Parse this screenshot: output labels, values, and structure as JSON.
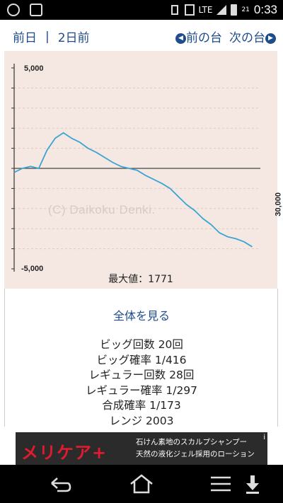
{
  "statusbar": {
    "network": "LTE",
    "battery": "21",
    "time": "0:33"
  },
  "nav": {
    "prev_day": "前日",
    "separator": "|",
    "two_days_ago": "2日前",
    "prev_machine": "前の台",
    "next_machine": "次の台"
  },
  "graph": {
    "watermark": "(C) Daikoku Denki.",
    "max_label": "最大値：1771",
    "chart_data": {
      "type": "line",
      "ylim": [
        -5000,
        5000
      ],
      "yticks": [
        "5,000",
        "-5,000"
      ],
      "xlabel_right": "30,000",
      "x_max": 30000,
      "grid": "dashed-horizontal",
      "series": [
        {
          "color": "#3aa5d3",
          "x": [
            0,
            1000,
            2000,
            3000,
            4000,
            5000,
            6000,
            7000,
            8000,
            9000,
            10000,
            11000,
            12000,
            13000,
            14000,
            15000,
            16000,
            17000,
            18000,
            19000,
            20000,
            21000,
            22000,
            23000,
            24000,
            25000,
            26000,
            27000,
            28000,
            29000
          ],
          "y": [
            -200,
            0,
            100,
            0,
            900,
            1500,
            1771,
            1500,
            1300,
            1000,
            800,
            550,
            300,
            100,
            0,
            -100,
            -350,
            -550,
            -750,
            -1000,
            -1400,
            -1800,
            -2100,
            -2500,
            -2800,
            -3200,
            -3400,
            -3500,
            -3650,
            -3900
          ]
        }
      ]
    }
  },
  "info": {
    "show_all": "全体を見る",
    "stats": [
      "ビッグ回数 20回",
      "ビッグ確率 1/416",
      "レギュラー回数 28回",
      "レギュラー確率 1/297",
      "合成確率 1/173",
      "レンジ 2003"
    ]
  },
  "ad": {
    "brand": "メリケア",
    "plus": "+",
    "line1": "石けん素地のスカルプシャンプー",
    "line2": "天然の液化ジェル採用のローション",
    "info": "i"
  },
  "icons": {
    "back": "back-icon",
    "home": "home-icon",
    "menu": "menu-icon",
    "download": "download-icon"
  }
}
